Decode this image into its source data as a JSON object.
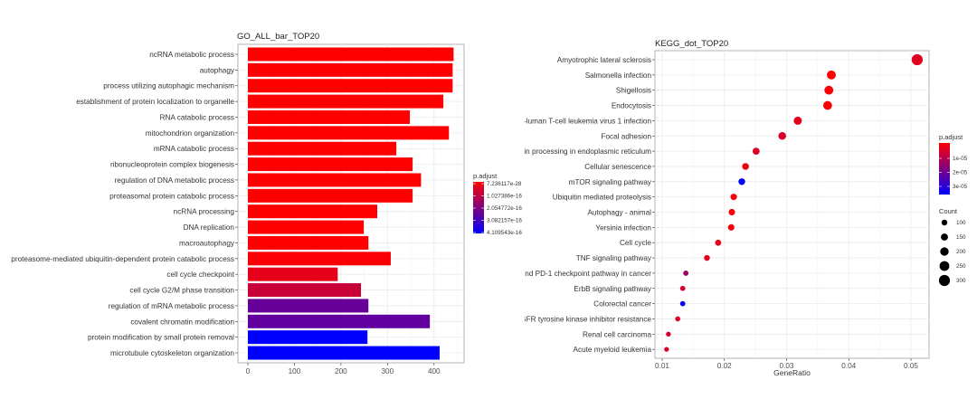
{
  "chart_data": [
    {
      "type": "bar",
      "orientation": "horizontal",
      "title": "GO_ALL_bar_TOP20",
      "xlabel": "",
      "ylabel": "",
      "xlim": [
        0,
        460
      ],
      "x_ticks": [
        "0",
        "100",
        "200",
        "300",
        "400"
      ],
      "grid": true,
      "categories": [
        "ncRNA metabolic process",
        "autophagy",
        "process utilizing autophagic mechanism",
        "establishment of protein localization to organelle",
        "RNA catabolic process",
        "mitochondrion organization",
        "mRNA catabolic process",
        "ribonucleoprotein complex biogenesis",
        "regulation of DNA metabolic process",
        "proteasomal protein catabolic process",
        "ncRNA processing",
        "DNA replication",
        "macroautophagy",
        "proteasome-mediated ubiquitin-dependent protein catabolic process",
        "cell cycle checkpoint",
        "cell cycle G2/M phase transition",
        "regulation of mRNA metabolic process",
        "covalent chromatin modification",
        "protein modification by small protein removal",
        "microtubule cytoskeleton organization"
      ],
      "values": [
        442,
        440,
        440,
        420,
        348,
        432,
        319,
        354,
        372,
        354,
        278,
        249,
        259,
        307,
        193,
        243,
        259,
        391,
        257,
        412
      ],
      "p_adjust_fraction": [
        0,
        0,
        0,
        0,
        0,
        0,
        0,
        0,
        0,
        0,
        0,
        0,
        0,
        0.02,
        0.1,
        0.22,
        0.6,
        0.62,
        1.0,
        1.0
      ],
      "legend": {
        "title": "p.adjust",
        "position": "right",
        "labels": [
          "7.236117e-28",
          "1.027386e-16",
          "2.054772e-16",
          "3.082157e-16",
          "4.109543e-16"
        ],
        "low_color": "#ff0000",
        "high_color": "#0000ff"
      }
    },
    {
      "type": "scatter",
      "title": "KEGG_dot_TOP20",
      "xlabel": "GeneRatio",
      "ylabel": "",
      "xlim": [
        0.0097,
        0.053
      ],
      "x_ticks": [
        "0.01",
        "0.02",
        "0.03",
        "0.04",
        "0.05"
      ],
      "grid": true,
      "categories": [
        "Amyotrophic lateral sclerosis",
        "Salmonella infection",
        "Shigellosis",
        "Endocytosis",
        "-luman T-cell leukemia virus 1 infection",
        "Focal adhesion",
        "ein processing in endoplasmic reticulum",
        "Cellular senescence",
        "mTOR signaling pathway",
        "Ubiquitin mediated proteolysis",
        "Autophagy - animal",
        "Yersinia infection",
        "Cell cycle",
        "TNF signaling pathway",
        "und PD-1 checkpoint pathway in cancer",
        "ErbB signaling pathway",
        "Colorectal cancer",
        "GFR tyrosine kinase inhibitor resistance",
        "Renal cell carcinoma",
        "Acute myeloid leukemia"
      ],
      "x": [
        0.051,
        0.0372,
        0.0368,
        0.0366,
        0.0318,
        0.0293,
        0.0251,
        0.0234,
        0.0228,
        0.0215,
        0.0212,
        0.0211,
        0.019,
        0.0172,
        0.0138,
        0.0133,
        0.0133,
        0.0125,
        0.011,
        0.0107
      ],
      "count": [
        300,
        220,
        218,
        216,
        188,
        173,
        148,
        138,
        135,
        127,
        126,
        125,
        112,
        102,
        82,
        79,
        79,
        74,
        65,
        63
      ],
      "p_adjust_fraction": [
        0.12,
        0.0,
        0.02,
        0.02,
        0.1,
        0.16,
        0.14,
        0.08,
        1.0,
        0.04,
        0.04,
        0.04,
        0.08,
        0.12,
        0.4,
        0.16,
        0.95,
        0.14,
        0.15,
        0.15
      ],
      "legend": {
        "color_title": "p.adjust",
        "color_labels": [
          "1e-05",
          "2e-05",
          "3e-05"
        ],
        "size_title": "Count",
        "size_labels": [
          "100",
          "150",
          "200",
          "250",
          "300"
        ],
        "position": "right",
        "low_color": "#ff0000",
        "high_color": "#0000ff"
      }
    }
  ]
}
